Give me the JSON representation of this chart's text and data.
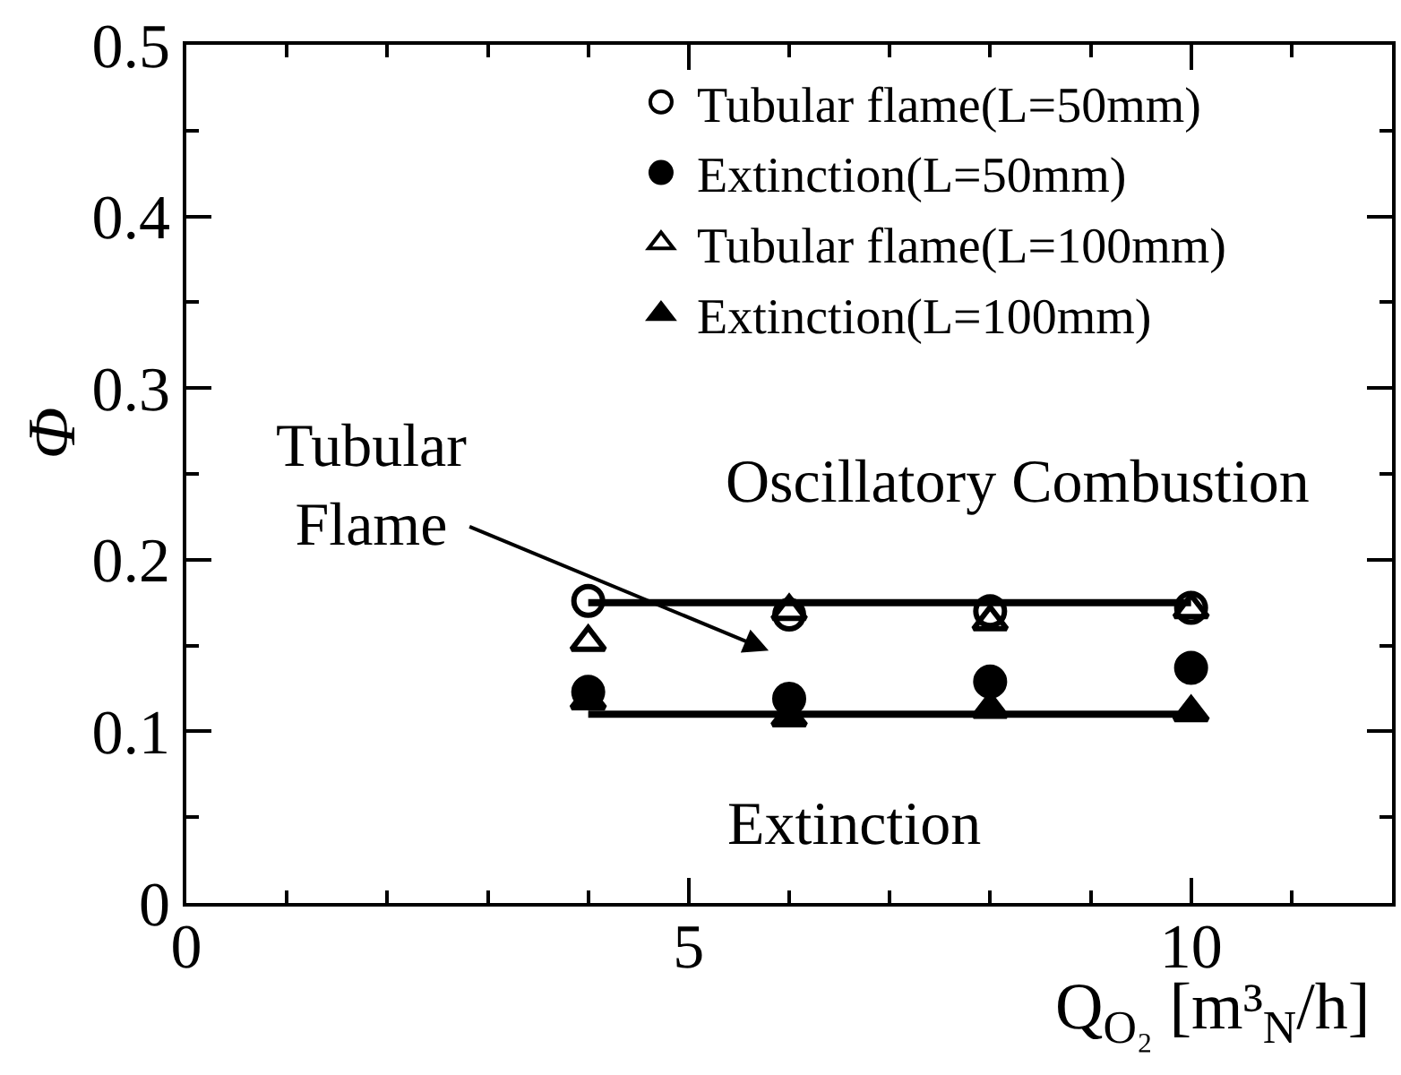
{
  "chart_data": {
    "type": "scatter",
    "xlabel": "Q$_{O₂}$ [m³$_{N}$/h]",
    "ylabel": "Φ",
    "annotations": [
      "Tubular\nFlame",
      "Oscillatory Combustion",
      "Extinction"
    ],
    "x": [
      4,
      6,
      8,
      10
    ],
    "series": [
      {
        "name": "Tubular flame(L=50mm)",
        "color": "#000000",
        "marker": "circle",
        "values": [
          0.176,
          0.168,
          0.17,
          0.172
        ]
      },
      {
        "name": "Extinction(L=50mm)",
        "color": "#000000",
        "marker": "circle",
        "values": [
          0.123,
          0.119,
          0.129,
          0.137
        ]
      },
      {
        "name": "Tubular flame(L=100mm)",
        "color": "#000000",
        "marker": "triangle",
        "values": [
          0.152,
          0.17,
          0.164,
          0.171
        ]
      },
      {
        "name": "Extinction(L=100mm)",
        "color": "#000000",
        "marker": "triangle",
        "values": [
          0.118,
          0.108,
          0.113,
          0.111
        ]
      },
      {
        "type": "line",
        "color": "#000000",
        "marker": "none",
        "values": [
          0.175,
          0.175,
          0.175,
          0.175
        ]
      },
      {
        "type": "line",
        "color": "#000000",
        "marker": "none",
        "values": [
          0.11,
          0.11,
          0.11,
          0.11
        ]
      }
    ],
    "xlim": [
      0,
      12
    ],
    "xticks": [
      0,
      {
        "value": 1,
        "label": null
      },
      {
        "value": 2,
        "label": null
      },
      {
        "value": 3,
        "label": null
      },
      {
        "value": 4,
        "label": null
      },
      5,
      {
        "value": 6,
        "label": null
      },
      {
        "value": 7,
        "label": null
      },
      {
        "value": 8,
        "label": null
      },
      {
        "value": 9,
        "label": null
      },
      10,
      {
        "value": 11,
        "label": null
      }
    ],
    "ylim": [
      0,
      0.5
    ],
    "yticks": [
      0,
      {
        "value": 0.05,
        "label": null
      },
      0.1,
      {
        "value": 0.15,
        "label": null
      },
      0.2,
      {
        "value": 0.25,
        "label": null
      },
      0.3,
      {
        "value": 0.35,
        "label": null
      },
      0.4,
      {
        "value": 0.45,
        "label": null
      },
      0.5
    ],
    "legend": "top right"
  }
}
